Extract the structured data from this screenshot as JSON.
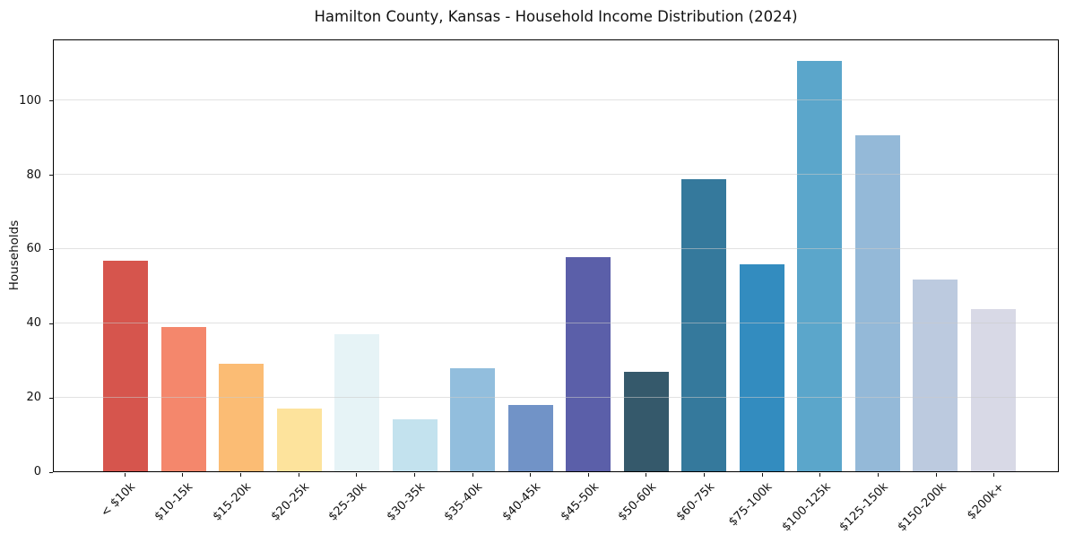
{
  "chart_data": {
    "type": "bar",
    "title": "Hamilton County, Kansas - Household Income Distribution (2024)",
    "xlabel": "",
    "ylabel": "Households",
    "categories": [
      "< $10k",
      "$10-15k",
      "$15-20k",
      "$20-25k",
      "$25-30k",
      "$30-35k",
      "$35-40k",
      "$40-45k",
      "$45-50k",
      "$50-60k",
      "$60-75k",
      "$75-100k",
      "$100-125k",
      "$125-150k",
      "$150-200k",
      "$200k+"
    ],
    "values": [
      57,
      39,
      29,
      17,
      37,
      14,
      28,
      18,
      58,
      27,
      79,
      56,
      111,
      91,
      52,
      44
    ],
    "bar_colors": [
      "#d6554d",
      "#f4876c",
      "#fbbc74",
      "#fde39c",
      "#e6f3f6",
      "#c3e2ee",
      "#92bedd",
      "#7193c7",
      "#5b5fa9",
      "#35596b",
      "#35799c",
      "#338cbf",
      "#5ba6cb",
      "#94b9d8",
      "#bccadf",
      "#d8d9e6"
    ],
    "y_ticks": [
      0,
      20,
      40,
      60,
      80,
      100
    ],
    "ylim": [
      0,
      116.6
    ],
    "grid": "horizontal-only",
    "legend_position": "none",
    "background_color": "#ffffff",
    "axis_color": "#000000",
    "grid_color": "#e2e2e2",
    "text_color": "#111111"
  }
}
